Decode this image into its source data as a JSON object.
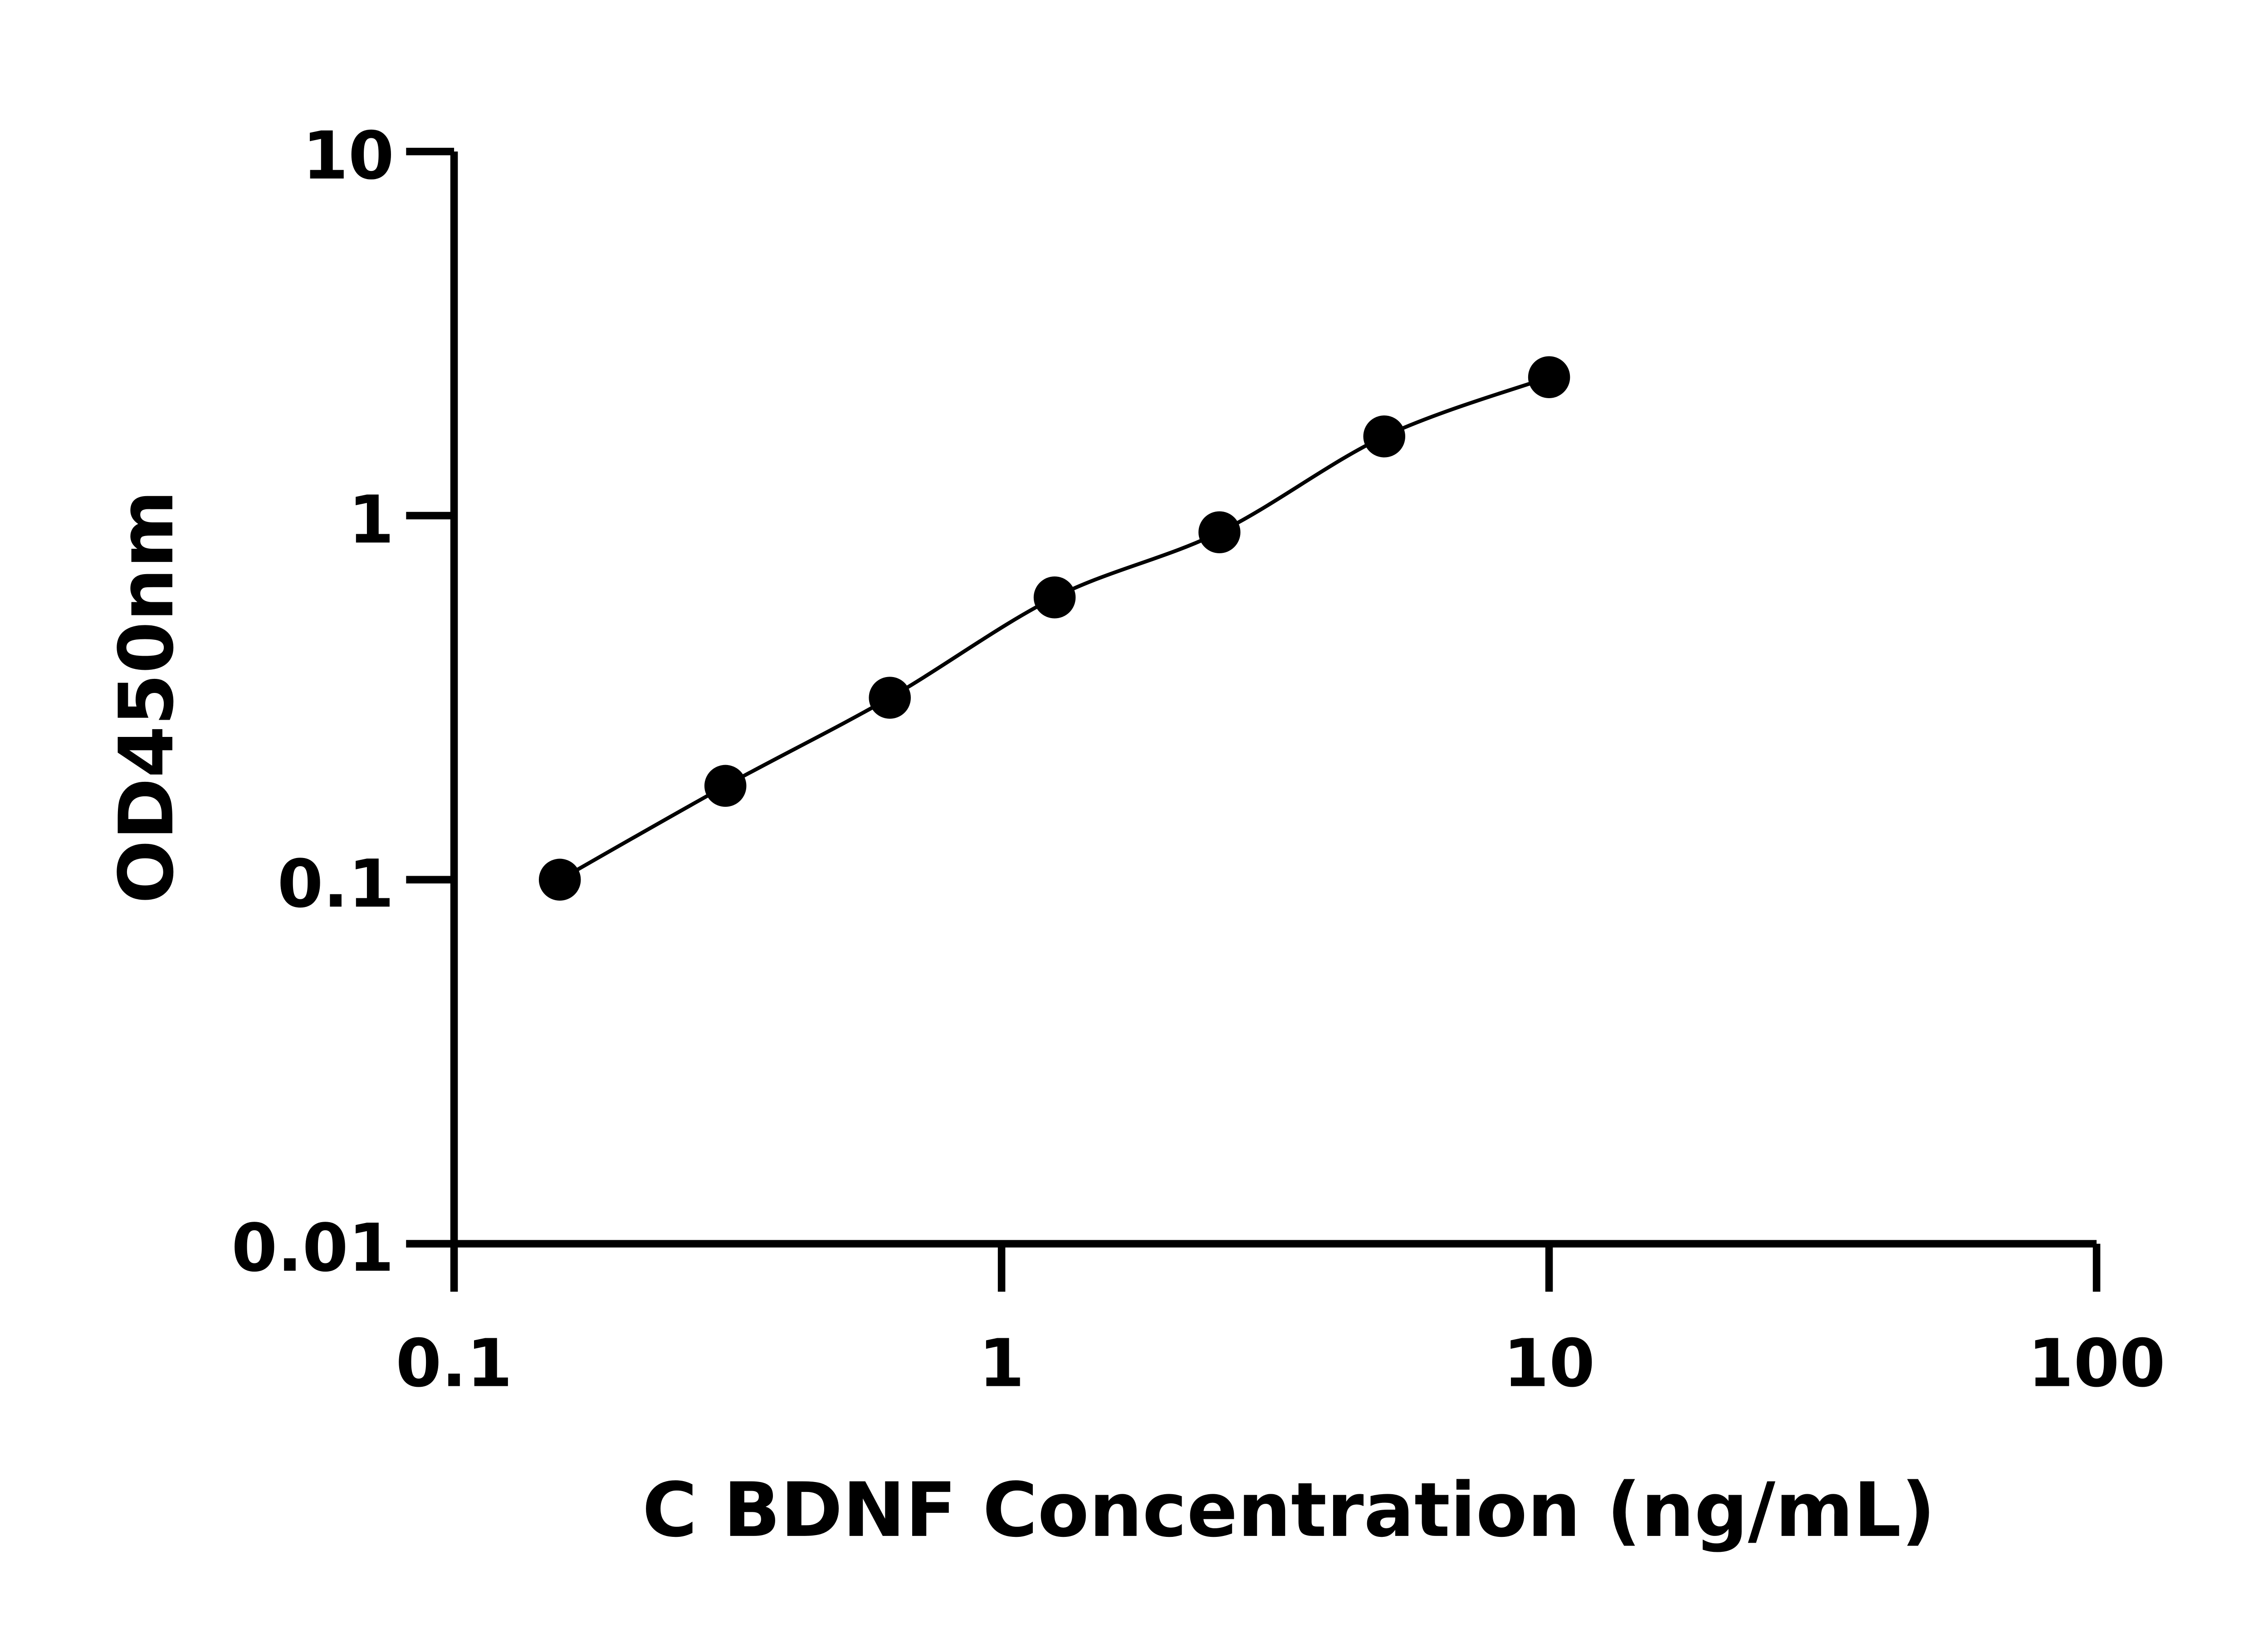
{
  "chart_data": {
    "type": "scatter",
    "title": "",
    "xlabel": "C BDNF Concentration (ng/mL)",
    "ylabel": "OD450nm",
    "xscale": "log",
    "yscale": "log",
    "xlim": [
      0.1,
      100
    ],
    "ylim": [
      0.01,
      10
    ],
    "xticks": [
      "0.1",
      "1",
      "10",
      "100"
    ],
    "yticks": [
      "0.01",
      "0.1",
      "1",
      "10"
    ],
    "grid": false,
    "fit_line": true,
    "colors": {
      "points": "#000000",
      "line": "#000000"
    },
    "series": [
      {
        "x": [
          0.156,
          0.313,
          0.625,
          1.25,
          2.5,
          5,
          10
        ],
        "y": [
          0.1,
          0.181,
          0.316,
          0.596,
          0.9,
          1.65,
          2.4
        ]
      }
    ]
  }
}
